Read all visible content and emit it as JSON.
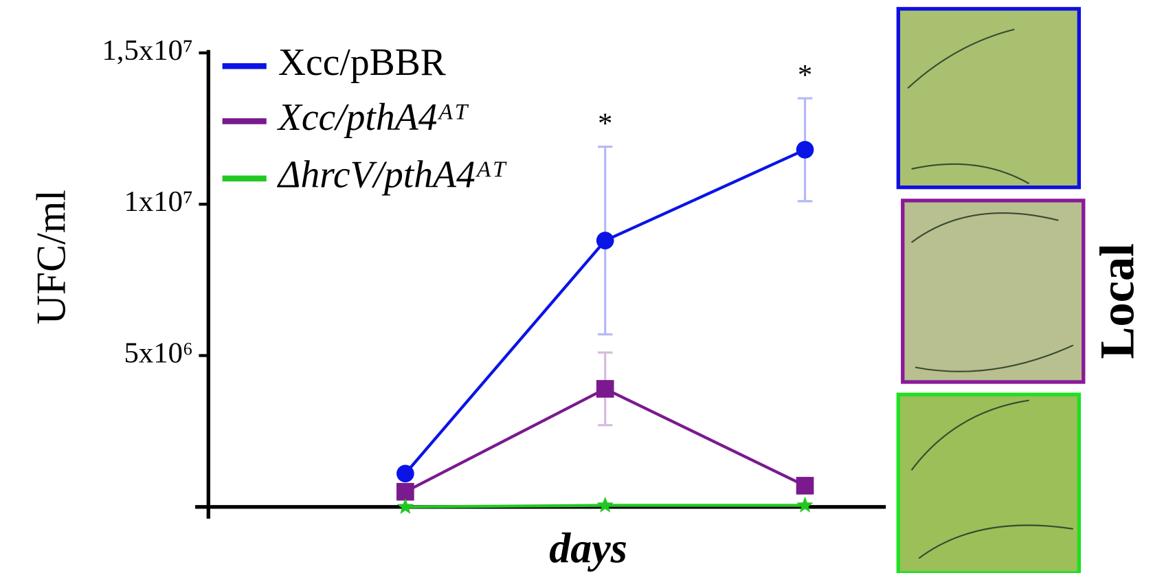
{
  "chart_data": {
    "type": "line",
    "y_label": "UFC/ml",
    "x_label": "days",
    "categories": [
      null,
      null,
      null
    ],
    "ylim": [
      0,
      15000000
    ],
    "yticks": [
      {
        "value": 5000000,
        "label": "5x10⁶"
      },
      {
        "value": 10000000,
        "label": "1x10⁷"
      },
      {
        "value": 15000000,
        "label": "1,5x10⁷"
      }
    ],
    "series": [
      {
        "name": "Xcc/pBBR",
        "color": "#0a14e6",
        "marker": "circle",
        "values": [
          1100000,
          8800000,
          11800000
        ],
        "errors": [
          0,
          3100000,
          1700000
        ]
      },
      {
        "name": "Xcc/pthA4ᴬᵀ",
        "color": "#7a1a8e",
        "marker": "square",
        "values": [
          500000,
          3900000,
          700000
        ],
        "errors": [
          0,
          1200000,
          0
        ]
      },
      {
        "name": "ΔhrcV/pthA4ᴬᵀ",
        "color": "#22c822",
        "marker": "star",
        "values": [
          0,
          50000,
          50000
        ]
      }
    ],
    "annotations": [
      "*",
      "*"
    ],
    "side_label": "Local"
  }
}
